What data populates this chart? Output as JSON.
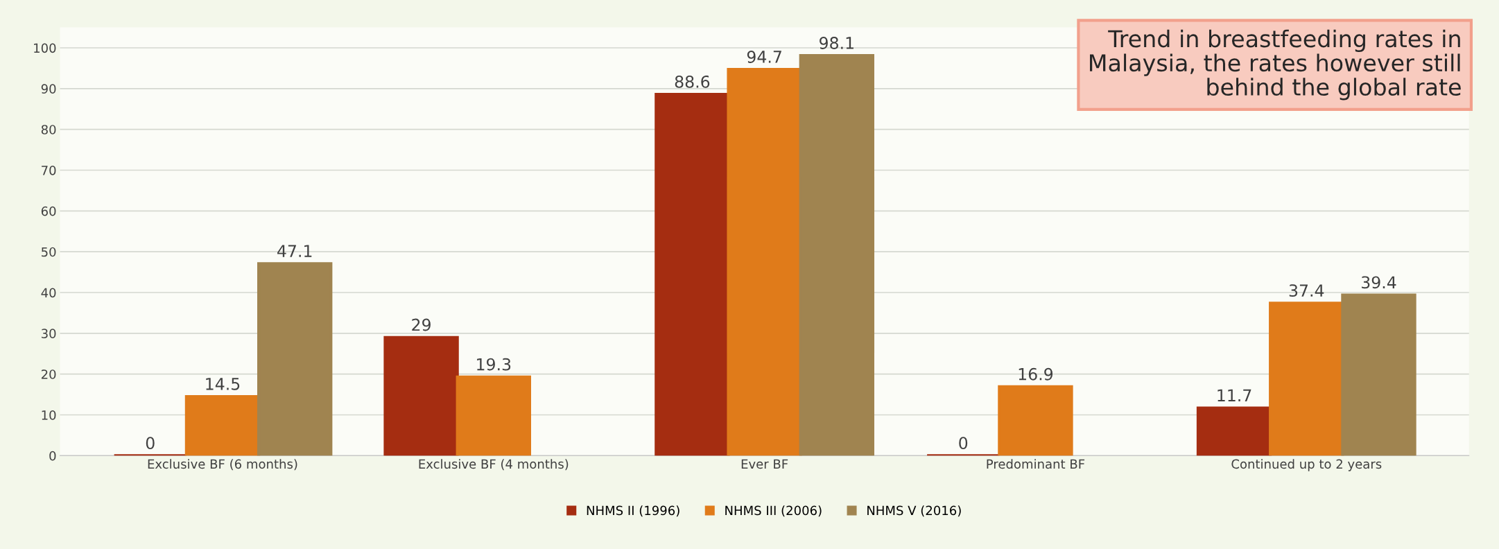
{
  "chart_data": {
    "type": "bar",
    "categories": [
      "Exclusive BF (6 months)",
      "Exclusive BF (4 months)",
      "Ever BF",
      "Predominant BF",
      "Continued up to 2 years"
    ],
    "series": [
      {
        "name": "NHMS II (1996)",
        "color": "#a52d11",
        "values": [
          0,
          29,
          88.6,
          0,
          11.7
        ]
      },
      {
        "name": "NHMS III (2006)",
        "color": "#e07b1a",
        "values": [
          14.5,
          19.3,
          94.7,
          16.9,
          37.4
        ]
      },
      {
        "name": "NHMS V (2016)",
        "color": "#a08450",
        "values": [
          47.1,
          null,
          98.1,
          null,
          39.4
        ]
      }
    ],
    "ylim": [
      0,
      105
    ],
    "yticks": [
      0,
      10,
      20,
      30,
      40,
      50,
      60,
      70,
      80,
      90,
      100
    ],
    "grid": "y",
    "legend": "bottom",
    "data_labels": true,
    "annotations": [
      "Trend in breastfeeding rates in\nMalaysia, the rates however still\nbehind the global rate"
    ]
  }
}
